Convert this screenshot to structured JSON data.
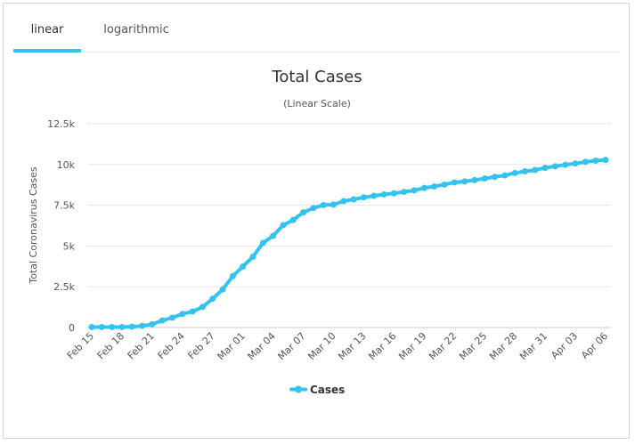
{
  "tabs": [
    {
      "label": "linear",
      "active": true
    },
    {
      "label": "logarithmic",
      "active": false
    }
  ],
  "colors": {
    "accent": "#33c3f0",
    "series": "#33c3f0",
    "grid": "#e6e6e6",
    "text": "#555555"
  },
  "chart_data": {
    "type": "line",
    "title": "Total Cases",
    "subtitle": "(Linear Scale)",
    "ylabel": "Total Coronavirus Cases",
    "xlabel": "",
    "ylim": [
      0,
      12500
    ],
    "yticks": [
      0,
      2500,
      5000,
      7500,
      10000,
      12500
    ],
    "ytick_labels": [
      "0",
      "2.5k",
      "5k",
      "7.5k",
      "10k",
      "12.5k"
    ],
    "x": [
      "Feb 15",
      "Feb 16",
      "Feb 17",
      "Feb 18",
      "Feb 19",
      "Feb 20",
      "Feb 21",
      "Feb 22",
      "Feb 23",
      "Feb 24",
      "Feb 25",
      "Feb 26",
      "Feb 27",
      "Feb 28",
      "Feb 29",
      "Mar 01",
      "Mar 02",
      "Mar 03",
      "Mar 04",
      "Mar 05",
      "Mar 06",
      "Mar 07",
      "Mar 08",
      "Mar 09",
      "Mar 10",
      "Mar 11",
      "Mar 12",
      "Mar 13",
      "Mar 14",
      "Mar 15",
      "Mar 16",
      "Mar 17",
      "Mar 18",
      "Mar 19",
      "Mar 20",
      "Mar 21",
      "Mar 22",
      "Mar 23",
      "Mar 24",
      "Mar 25",
      "Mar 26",
      "Mar 27",
      "Mar 28",
      "Mar 29",
      "Mar 30",
      "Mar 31",
      "Apr 01",
      "Apr 02",
      "Apr 03",
      "Apr 04",
      "Apr 05",
      "Apr 06"
    ],
    "xtick_labels": [
      "Feb 15",
      "Feb 18",
      "Feb 21",
      "Feb 24",
      "Feb 27",
      "Mar 01",
      "Mar 04",
      "Mar 07",
      "Mar 10",
      "Mar 13",
      "Mar 16",
      "Mar 19",
      "Mar 22",
      "Mar 25",
      "Mar 28",
      "Mar 31",
      "Apr 03",
      "Apr 06"
    ],
    "grid": true,
    "legend_position": "bottom-center",
    "series": [
      {
        "name": "Cases",
        "values": [
          30,
          30,
          30,
          30,
          50,
          100,
          200,
          430,
          600,
          830,
          980,
          1260,
          1770,
          2340,
          3150,
          3740,
          4340,
          5190,
          5620,
          6280,
          6600,
          7060,
          7330,
          7510,
          7540,
          7750,
          7860,
          7980,
          8080,
          8160,
          8230,
          8320,
          8410,
          8560,
          8650,
          8770,
          8900,
          8960,
          9040,
          9140,
          9240,
          9330,
          9480,
          9580,
          9660,
          9790,
          9890,
          9980,
          10060,
          10160,
          10230,
          10280
        ]
      }
    ]
  }
}
